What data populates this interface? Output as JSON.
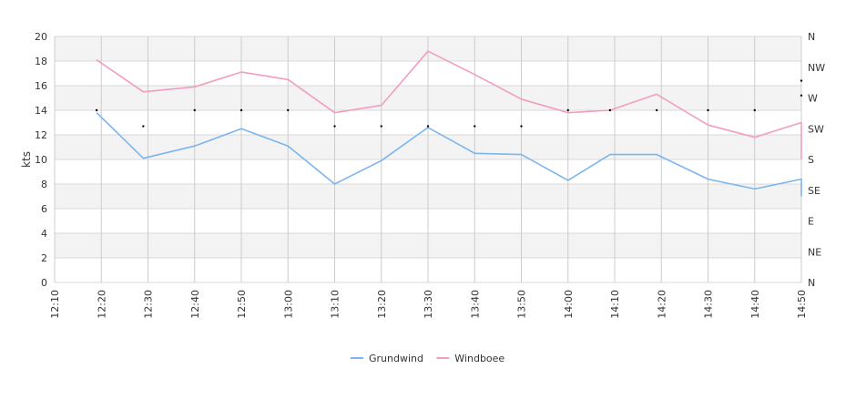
{
  "chart_data": {
    "type": "line",
    "x": [
      "12:10",
      "12:20",
      "12:30",
      "12:40",
      "12:50",
      "13:00",
      "13:10",
      "13:20",
      "13:30",
      "13:40",
      "13:50",
      "14:00",
      "14:10",
      "14:20",
      "14:30",
      "14:40",
      "14:50"
    ],
    "xlabel": "",
    "ylabel": "kts",
    "ylim": [
      0,
      20
    ],
    "yticks": [
      0,
      2,
      4,
      6,
      8,
      10,
      12,
      14,
      16,
      18,
      20
    ],
    "direction_ticks": [
      "N",
      "NE",
      "E",
      "SE",
      "S",
      "SW",
      "W",
      "NW",
      "N"
    ],
    "grid": true,
    "legend": "bottom-center",
    "series": [
      {
        "name": "Grundwind",
        "color": "#7cb5ec",
        "points": [
          [
            "12:19",
            13.8
          ],
          [
            "12:29",
            10.1
          ],
          [
            "12:40",
            11.1
          ],
          [
            "12:50",
            12.5
          ],
          [
            "13:00",
            11.1
          ],
          [
            "13:10",
            8.0
          ],
          [
            "13:20",
            9.9
          ],
          [
            "13:30",
            12.6
          ],
          [
            "13:40",
            10.5
          ],
          [
            "13:50",
            10.4
          ],
          [
            "14:00",
            8.3
          ],
          [
            "14:09",
            10.4
          ],
          [
            "14:19",
            10.4
          ],
          [
            "14:30",
            8.4
          ],
          [
            "14:40",
            7.6
          ],
          [
            "14:50",
            8.4
          ],
          [
            "14:50",
            7.0
          ]
        ]
      },
      {
        "name": "Windboee",
        "color": "#f19ec2",
        "points": [
          [
            "12:19",
            18.1
          ],
          [
            "12:29",
            15.5
          ],
          [
            "12:40",
            15.9
          ],
          [
            "12:50",
            17.1
          ],
          [
            "13:00",
            16.5
          ],
          [
            "13:10",
            13.8
          ],
          [
            "13:20",
            14.4
          ],
          [
            "13:30",
            18.8
          ],
          [
            "13:40",
            16.9
          ],
          [
            "13:50",
            14.9
          ],
          [
            "14:00",
            13.8
          ],
          [
            "14:09",
            14.0
          ],
          [
            "14:19",
            15.3
          ],
          [
            "14:30",
            12.8
          ],
          [
            "14:40",
            11.8
          ],
          [
            "14:50",
            13.0
          ],
          [
            "14:50",
            10.0
          ]
        ]
      }
    ],
    "direction_markers": [
      [
        "12:19",
        14.0
      ],
      [
        "12:29",
        12.7
      ],
      [
        "12:40",
        14.0
      ],
      [
        "12:50",
        14.0
      ],
      [
        "13:00",
        14.0
      ],
      [
        "13:10",
        12.7
      ],
      [
        "13:20",
        12.7
      ],
      [
        "13:30",
        12.7
      ],
      [
        "13:40",
        12.7
      ],
      [
        "13:50",
        12.7
      ],
      [
        "14:00",
        14.0
      ],
      [
        "14:09",
        14.0
      ],
      [
        "14:19",
        14.0
      ],
      [
        "14:30",
        14.0
      ],
      [
        "14:40",
        14.0
      ],
      [
        "14:50",
        16.4
      ],
      [
        "14:50",
        15.2
      ]
    ],
    "colors": {
      "band": "#f3f3f3",
      "gridline": "#d8d8d8",
      "vertical_grid": "#cccccc",
      "axis_text": "#333333",
      "marker": "#000000"
    }
  }
}
